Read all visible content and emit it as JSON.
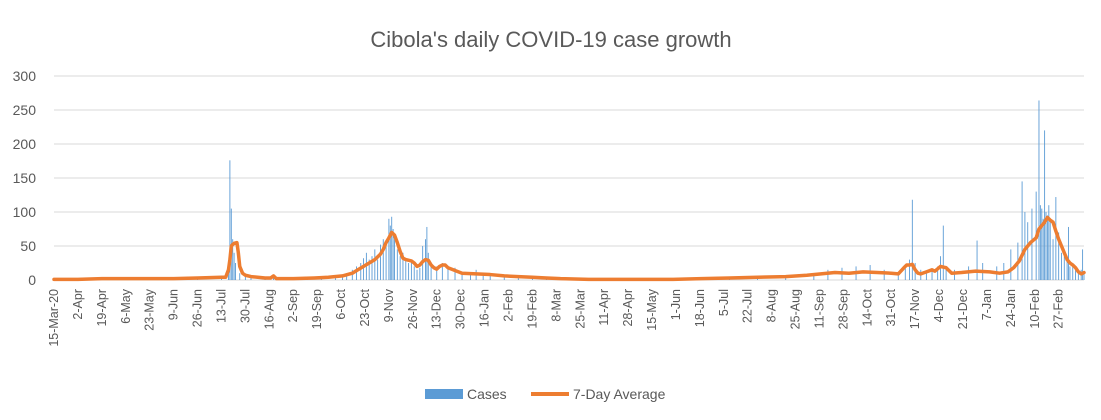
{
  "chart_data": {
    "type": "bar",
    "title": "Cibola's daily COVID-19 case growth",
    "ylim": [
      0,
      300
    ],
    "yticks": [
      0,
      50,
      100,
      150,
      200,
      250,
      300
    ],
    "grid": true,
    "legend_position": "bottom",
    "x_tick_labels": [
      "15-Mar-20",
      "2-Apr",
      "19-Apr",
      "6-May",
      "23-May",
      "9-Jun",
      "26-Jun",
      "13-Jul",
      "30-Jul",
      "16-Aug",
      "2-Sep",
      "19-Sep",
      "6-Oct",
      "23-Oct",
      "9-Nov",
      "26-Nov",
      "13-Dec",
      "30-Dec",
      "16-Jan",
      "2-Feb",
      "19-Feb",
      "8-Mar",
      "25-Mar",
      "11-Apr",
      "28-Apr",
      "15-May",
      "1-Jun",
      "18-Jun",
      "5-Jul",
      "22-Jul",
      "8-Aug",
      "25-Aug",
      "11-Sep",
      "28-Sep",
      "14-Oct",
      "31-Oct",
      "17-Nov",
      "4-Dec",
      "21-Dec",
      "7-Jan",
      "24-Jan",
      "10-Feb",
      "27-Feb"
    ],
    "x_tick_interval_days": 17,
    "num_days": 733,
    "series": [
      {
        "name": "Cases",
        "type": "bar",
        "color": "#5b9bd5",
        "sparse_daily_values": [
          [
            0,
            0
          ],
          [
            17,
            1
          ],
          [
            34,
            2
          ],
          [
            51,
            4
          ],
          [
            68,
            3
          ],
          [
            85,
            2
          ],
          [
            102,
            3
          ],
          [
            119,
            4
          ],
          [
            124,
            30
          ],
          [
            125,
            176
          ],
          [
            126,
            105
          ],
          [
            127,
            60
          ],
          [
            128,
            40
          ],
          [
            129,
            25
          ],
          [
            132,
            10
          ],
          [
            136,
            6
          ],
          [
            140,
            4
          ],
          [
            150,
            3
          ],
          [
            156,
            7
          ],
          [
            160,
            2
          ],
          [
            180,
            3
          ],
          [
            190,
            4
          ],
          [
            200,
            5
          ],
          [
            205,
            8
          ],
          [
            208,
            10
          ],
          [
            212,
            15
          ],
          [
            215,
            20
          ],
          [
            218,
            25
          ],
          [
            220,
            32
          ],
          [
            222,
            40
          ],
          [
            224,
            30
          ],
          [
            226,
            35
          ],
          [
            228,
            45
          ],
          [
            230,
            30
          ],
          [
            232,
            52
          ],
          [
            234,
            60
          ],
          [
            236,
            55
          ],
          [
            238,
            90
          ],
          [
            239,
            80
          ],
          [
            240,
            93
          ],
          [
            241,
            75
          ],
          [
            242,
            60
          ],
          [
            244,
            45
          ],
          [
            246,
            35
          ],
          [
            248,
            40
          ],
          [
            250,
            30
          ],
          [
            252,
            25
          ],
          [
            254,
            28
          ],
          [
            256,
            20
          ],
          [
            258,
            15
          ],
          [
            260,
            18
          ],
          [
            262,
            50
          ],
          [
            264,
            60
          ],
          [
            265,
            78
          ],
          [
            266,
            40
          ],
          [
            268,
            22
          ],
          [
            272,
            20
          ],
          [
            276,
            25
          ],
          [
            280,
            20
          ],
          [
            285,
            18
          ],
          [
            290,
            12
          ],
          [
            296,
            10
          ],
          [
            300,
            15
          ],
          [
            305,
            10
          ],
          [
            310,
            8
          ],
          [
            320,
            6
          ],
          [
            330,
            5
          ],
          [
            340,
            4
          ],
          [
            350,
            3
          ],
          [
            360,
            2
          ],
          [
            380,
            2
          ],
          [
            400,
            1
          ],
          [
            420,
            1
          ],
          [
            440,
            1
          ],
          [
            460,
            2
          ],
          [
            480,
            3
          ],
          [
            500,
            4
          ],
          [
            520,
            6
          ],
          [
            540,
            10
          ],
          [
            550,
            15
          ],
          [
            560,
            18
          ],
          [
            570,
            20
          ],
          [
            580,
            22
          ],
          [
            590,
            15
          ],
          [
            600,
            12
          ],
          [
            605,
            18
          ],
          [
            608,
            30
          ],
          [
            610,
            118
          ],
          [
            612,
            25
          ],
          [
            616,
            15
          ],
          [
            620,
            12
          ],
          [
            624,
            15
          ],
          [
            628,
            20
          ],
          [
            630,
            35
          ],
          [
            632,
            80
          ],
          [
            634,
            20
          ],
          [
            640,
            15
          ],
          [
            650,
            20
          ],
          [
            656,
            58
          ],
          [
            660,
            25
          ],
          [
            670,
            20
          ],
          [
            675,
            25
          ],
          [
            680,
            45
          ],
          [
            685,
            55
          ],
          [
            688,
            145
          ],
          [
            690,
            100
          ],
          [
            692,
            85
          ],
          [
            695,
            105
          ],
          [
            698,
            130
          ],
          [
            700,
            264
          ],
          [
            701,
            110
          ],
          [
            702,
            105
          ],
          [
            703,
            90
          ],
          [
            704,
            220
          ],
          [
            705,
            100
          ],
          [
            706,
            95
          ],
          [
            707,
            110
          ],
          [
            708,
            85
          ],
          [
            710,
            60
          ],
          [
            712,
            122
          ],
          [
            714,
            70
          ],
          [
            716,
            40
          ],
          [
            718,
            35
          ],
          [
            720,
            30
          ],
          [
            721,
            78
          ],
          [
            722,
            20
          ],
          [
            724,
            25
          ],
          [
            726,
            15
          ],
          [
            728,
            10
          ],
          [
            730,
            15
          ],
          [
            731,
            45
          ],
          [
            732,
            10
          ]
        ]
      },
      {
        "name": "7-Day Average",
        "type": "line",
        "color": "#ed7d31",
        "points": [
          [
            0,
            1
          ],
          [
            17,
            1
          ],
          [
            34,
            2
          ],
          [
            51,
            2
          ],
          [
            68,
            2
          ],
          [
            85,
            2
          ],
          [
            102,
            3
          ],
          [
            119,
            4
          ],
          [
            122,
            4
          ],
          [
            124,
            15
          ],
          [
            125,
            30
          ],
          [
            126,
            50
          ],
          [
            128,
            54
          ],
          [
            130,
            55
          ],
          [
            131,
            40
          ],
          [
            132,
            20
          ],
          [
            134,
            10
          ],
          [
            136,
            7
          ],
          [
            140,
            5
          ],
          [
            150,
            3
          ],
          [
            154,
            3
          ],
          [
            156,
            6
          ],
          [
            158,
            2
          ],
          [
            170,
            2
          ],
          [
            185,
            3
          ],
          [
            195,
            4
          ],
          [
            205,
            6
          ],
          [
            212,
            10
          ],
          [
            216,
            15
          ],
          [
            220,
            20
          ],
          [
            224,
            25
          ],
          [
            228,
            30
          ],
          [
            232,
            38
          ],
          [
            234,
            45
          ],
          [
            236,
            55
          ],
          [
            238,
            62
          ],
          [
            240,
            70
          ],
          [
            242,
            66
          ],
          [
            244,
            55
          ],
          [
            246,
            42
          ],
          [
            248,
            32
          ],
          [
            250,
            30
          ],
          [
            254,
            28
          ],
          [
            256,
            25
          ],
          [
            258,
            20
          ],
          [
            260,
            22
          ],
          [
            262,
            27
          ],
          [
            264,
            30
          ],
          [
            266,
            29
          ],
          [
            268,
            22
          ],
          [
            270,
            18
          ],
          [
            272,
            16
          ],
          [
            274,
            20
          ],
          [
            276,
            22
          ],
          [
            278,
            22
          ],
          [
            280,
            18
          ],
          [
            285,
            14
          ],
          [
            290,
            10
          ],
          [
            300,
            9
          ],
          [
            310,
            8
          ],
          [
            320,
            6
          ],
          [
            330,
            5
          ],
          [
            340,
            4
          ],
          [
            350,
            3
          ],
          [
            360,
            2
          ],
          [
            380,
            1
          ],
          [
            400,
            1
          ],
          [
            420,
            1
          ],
          [
            440,
            1
          ],
          [
            460,
            2
          ],
          [
            480,
            3
          ],
          [
            500,
            4
          ],
          [
            520,
            5
          ],
          [
            535,
            7
          ],
          [
            545,
            9
          ],
          [
            555,
            11
          ],
          [
            565,
            10
          ],
          [
            575,
            12
          ],
          [
            585,
            11
          ],
          [
            595,
            10
          ],
          [
            600,
            9
          ],
          [
            604,
            18
          ],
          [
            606,
            22
          ],
          [
            608,
            22
          ],
          [
            610,
            23
          ],
          [
            612,
            15
          ],
          [
            614,
            10
          ],
          [
            616,
            9
          ],
          [
            620,
            12
          ],
          [
            624,
            15
          ],
          [
            626,
            13
          ],
          [
            630,
            20
          ],
          [
            634,
            18
          ],
          [
            638,
            10
          ],
          [
            645,
            11
          ],
          [
            655,
            13
          ],
          [
            665,
            12
          ],
          [
            672,
            10
          ],
          [
            678,
            12
          ],
          [
            682,
            18
          ],
          [
            686,
            28
          ],
          [
            690,
            45
          ],
          [
            694,
            55
          ],
          [
            698,
            62
          ],
          [
            700,
            75
          ],
          [
            702,
            80
          ],
          [
            704,
            85
          ],
          [
            706,
            92
          ],
          [
            708,
            88
          ],
          [
            710,
            85
          ],
          [
            712,
            72
          ],
          [
            714,
            60
          ],
          [
            716,
            50
          ],
          [
            718,
            40
          ],
          [
            720,
            30
          ],
          [
            722,
            25
          ],
          [
            724,
            22
          ],
          [
            726,
            18
          ],
          [
            728,
            12
          ],
          [
            730,
            9
          ],
          [
            732,
            11
          ]
        ]
      }
    ]
  },
  "legend": {
    "cases_label": "Cases",
    "avg_label": "7-Day Average"
  }
}
